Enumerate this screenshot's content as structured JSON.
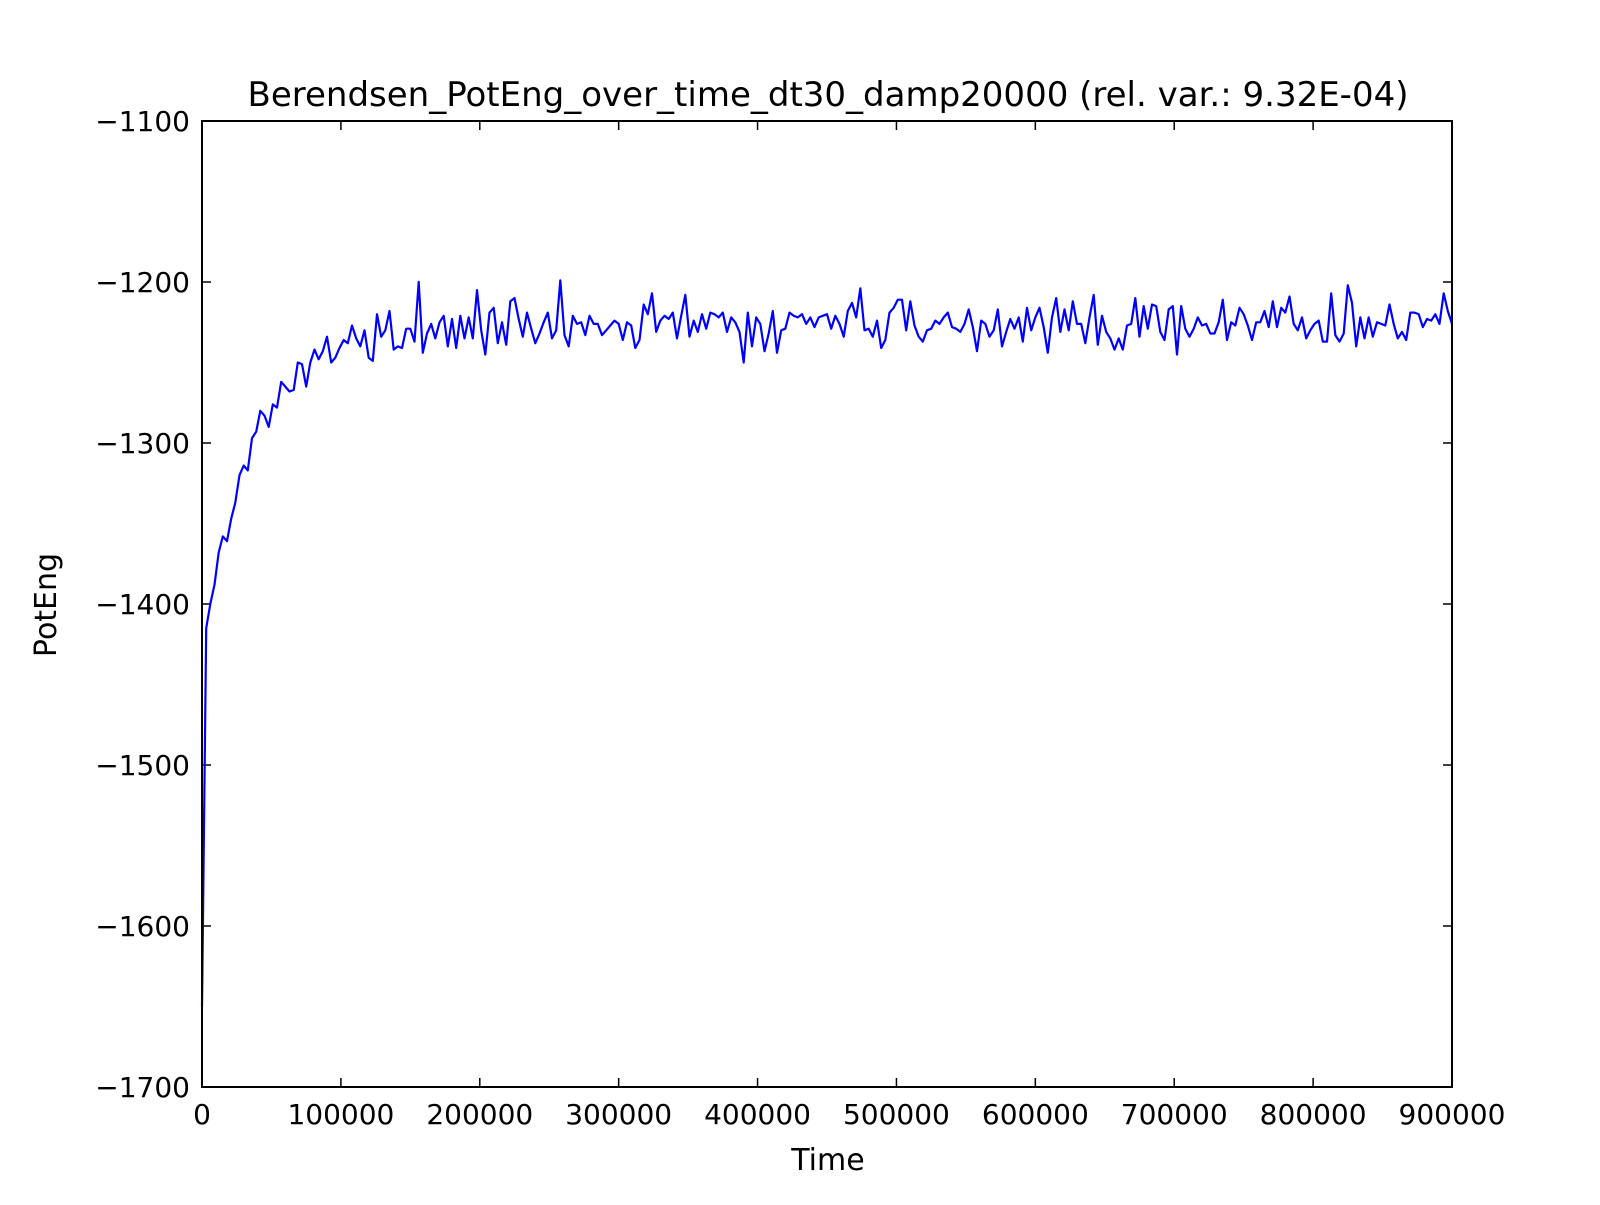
{
  "chart_data": {
    "type": "line",
    "title": "Berendsen_PotEng_over_time_dt30_damp20000 (rel. var.: 9.32E-04)",
    "xlabel": "Time",
    "ylabel": "PotEng",
    "xlim": [
      0,
      900000
    ],
    "ylim": [
      -1700,
      -1100
    ],
    "xticks": [
      0,
      100000,
      200000,
      300000,
      400000,
      500000,
      600000,
      700000,
      800000,
      900000
    ],
    "xtick_labels": [
      "0",
      "100000",
      "200000",
      "300000",
      "400000",
      "500000",
      "600000",
      "700000",
      "800000",
      "900000"
    ],
    "yticks": [
      -1700,
      -1600,
      -1500,
      -1400,
      -1300,
      -1200,
      -1100
    ],
    "ytick_labels": [
      "−1700",
      "−1600",
      "−1500",
      "−1400",
      "−1300",
      "−1200",
      "−1100"
    ],
    "grid": false,
    "line_color": "#0000ff",
    "series": [
      {
        "x": [
          0,
          3000,
          6000,
          9000,
          12000,
          15000,
          18000,
          21000,
          24000,
          27000,
          30000,
          33000,
          36000,
          39000,
          42000,
          45000,
          48000,
          51000,
          54000,
          57000,
          60000,
          63000,
          66000,
          69000,
          72000,
          75000,
          78000,
          81000,
          84000,
          87000,
          90000,
          93000,
          96000,
          99000,
          102000,
          105000,
          108000,
          111000,
          114000,
          117000,
          120000,
          123000,
          126000,
          129000,
          132000,
          135000,
          138000,
          141000,
          144000,
          147000,
          150000,
          153000,
          156000,
          159000,
          162000,
          165000,
          168000,
          171000,
          174000,
          177000,
          180000,
          183000,
          186000,
          189000,
          192000,
          195000,
          198000,
          201000,
          204000,
          207000,
          210000,
          213000,
          216000,
          219000,
          222000,
          225000,
          228000,
          231000,
          234000,
          237000,
          240000,
          243000,
          246000,
          249000,
          252000,
          255000,
          258000,
          261000,
          264000,
          267000,
          270000,
          273000,
          276000,
          279000,
          282000,
          285000,
          288000,
          291000,
          294000,
          297000,
          300000,
          303000,
          306000,
          309000,
          312000,
          315000,
          318000,
          321000,
          324000,
          327000,
          330000,
          333000,
          336000,
          339000,
          342000,
          345000,
          348000,
          351000,
          354000,
          357000,
          360000,
          363000,
          366000,
          369000,
          372000,
          375000,
          378000,
          381000,
          384000,
          387000,
          390000,
          393000,
          396000,
          399000,
          402000,
          405000,
          408000,
          411000,
          414000,
          417000,
          420000,
          423000,
          426000,
          429000,
          432000,
          435000,
          438000,
          441000,
          444000,
          447000,
          450000,
          453000,
          456000,
          459000,
          462000,
          465000,
          468000,
          471000,
          474000,
          477000,
          480000,
          483000,
          486000,
          489000,
          492000,
          495000,
          498000,
          501000,
          504000,
          507000,
          510000,
          513000,
          516000,
          519000,
          522000,
          525000,
          528000,
          531000,
          534000,
          537000,
          540000,
          543000,
          546000,
          549000,
          552000,
          555000,
          558000,
          561000,
          564000,
          567000,
          570000,
          573000,
          576000,
          579000,
          582000,
          585000,
          588000,
          591000,
          594000,
          597000,
          600000,
          603000,
          606000,
          609000,
          612000,
          615000,
          618000,
          621000,
          624000,
          627000,
          630000,
          633000,
          636000,
          639000,
          642000,
          645000,
          648000,
          651000,
          654000,
          657000,
          660000,
          663000,
          666000,
          669000,
          672000,
          675000,
          678000,
          681000,
          684000,
          687000,
          690000,
          693000,
          696000,
          699000,
          702000,
          705000,
          708000,
          711000,
          714000,
          717000,
          720000,
          723000,
          726000,
          729000,
          732000,
          735000,
          738000,
          741000,
          744000,
          747000,
          750000,
          753000,
          756000,
          759000,
          762000,
          765000,
          768000,
          771000,
          774000,
          777000,
          780000,
          783000,
          786000,
          789000,
          792000,
          795000,
          798000,
          801000,
          804000,
          807000,
          810000,
          813000,
          816000,
          819000,
          822000,
          825000,
          828000,
          831000,
          834000,
          837000,
          840000,
          843000,
          846000,
          849000,
          852000,
          855000,
          858000,
          861000,
          864000,
          867000,
          870000,
          873000,
          876000,
          879000,
          882000,
          885000,
          888000,
          891000,
          894000,
          897000,
          900000
        ],
        "y": [
          -1650,
          -1415,
          -1400,
          -1388,
          -1368,
          -1358,
          -1361,
          -1347,
          -1337,
          -1320,
          -1314,
          -1317,
          -1297,
          -1293,
          -1280,
          -1283,
          -1290,
          -1276,
          -1278,
          -1262,
          -1265,
          -1268,
          -1267,
          -1250,
          -1251,
          -1265,
          -1250,
          -1242,
          -1248,
          -1243,
          -1234,
          -1250,
          -1247,
          -1241,
          -1236,
          -1238,
          -1227,
          -1235,
          -1240,
          -1230,
          -1247,
          -1249,
          -1220,
          -1234,
          -1230,
          -1218,
          -1242,
          -1240,
          -1241,
          -1229,
          -1229,
          -1237,
          -1200,
          -1244,
          -1232,
          -1226,
          -1235,
          -1225,
          -1221,
          -1240,
          -1223,
          -1241,
          -1221,
          -1235,
          -1222,
          -1235,
          -1205,
          -1230,
          -1245,
          -1219,
          -1216,
          -1238,
          -1225,
          -1239,
          -1212,
          -1210,
          -1223,
          -1234,
          -1219,
          -1229,
          -1238,
          -1232,
          -1225,
          -1219,
          -1235,
          -1230,
          -1199,
          -1233,
          -1240,
          -1221,
          -1226,
          -1225,
          -1233,
          -1221,
          -1226,
          -1226,
          -1233,
          -1230,
          -1227,
          -1224,
          -1226,
          -1236,
          -1225,
          -1227,
          -1241,
          -1236,
          -1214,
          -1220,
          -1207,
          -1231,
          -1224,
          -1221,
          -1223,
          -1219,
          -1235,
          -1221,
          -1208,
          -1234,
          -1224,
          -1231,
          -1220,
          -1229,
          -1219,
          -1220,
          -1222,
          -1219,
          -1231,
          -1222,
          -1225,
          -1231,
          -1250,
          -1219,
          -1240,
          -1222,
          -1226,
          -1243,
          -1232,
          -1218,
          -1244,
          -1230,
          -1229,
          -1219,
          -1221,
          -1222,
          -1220,
          -1226,
          -1222,
          -1228,
          -1222,
          -1221,
          -1220,
          -1229,
          -1221,
          -1226,
          -1234,
          -1218,
          -1213,
          -1222,
          -1204,
          -1230,
          -1229,
          -1234,
          -1224,
          -1241,
          -1236,
          -1219,
          -1216,
          -1211,
          -1211,
          -1230,
          -1212,
          -1227,
          -1234,
          -1237,
          -1230,
          -1229,
          -1224,
          -1226,
          -1222,
          -1219,
          -1228,
          -1229,
          -1231,
          -1226,
          -1217,
          -1228,
          -1243,
          -1224,
          -1226,
          -1234,
          -1230,
          -1217,
          -1240,
          -1231,
          -1223,
          -1229,
          -1222,
          -1237,
          -1216,
          -1230,
          -1222,
          -1216,
          -1228,
          -1244,
          -1222,
          -1210,
          -1231,
          -1217,
          -1230,
          -1212,
          -1226,
          -1226,
          -1238,
          -1222,
          -1208,
          -1239,
          -1221,
          -1231,
          -1235,
          -1242,
          -1235,
          -1242,
          -1227,
          -1226,
          -1210,
          -1234,
          -1215,
          -1229,
          -1214,
          -1215,
          -1231,
          -1236,
          -1217,
          -1215,
          -1245,
          -1215,
          -1229,
          -1234,
          -1229,
          -1222,
          -1227,
          -1226,
          -1232,
          -1232,
          -1225,
          -1211,
          -1236,
          -1225,
          -1227,
          -1216,
          -1220,
          -1227,
          -1236,
          -1225,
          -1225,
          -1218,
          -1228,
          -1212,
          -1228,
          -1216,
          -1219,
          -1209,
          -1226,
          -1230,
          -1222,
          -1235,
          -1230,
          -1226,
          -1224,
          -1237,
          -1237,
          -1207,
          -1233,
          -1237,
          -1232,
          -1202,
          -1213,
          -1240,
          -1222,
          -1235,
          -1222,
          -1234,
          -1225,
          -1226,
          -1227,
          -1214,
          -1226,
          -1235,
          -1231,
          -1236,
          -1219,
          -1219,
          -1220,
          -1228,
          -1223,
          -1224,
          -1220,
          -1226,
          -1207,
          -1218,
          -1226
        ]
      }
    ]
  }
}
